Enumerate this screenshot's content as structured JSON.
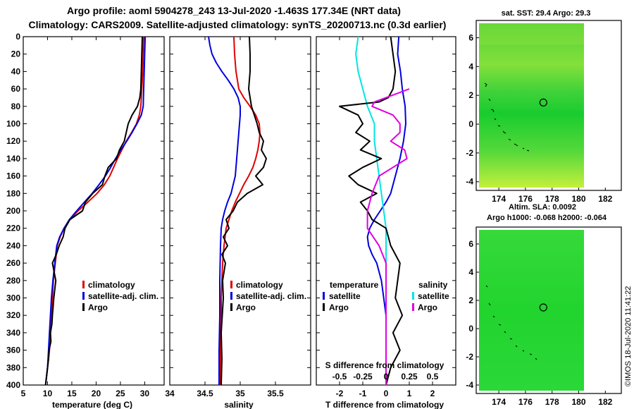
{
  "title_line1": "Argo profile: aoml 5904278_243 13-Jul-2020 -1.463S 177.34E (NRT data)",
  "title_line2": "Climatology: CARS2009. Satellite-adjusted climatology: synTS_20200713.nc (0.3d earlier)",
  "credit": "©IMOS 18-Jul-2020 11:41:22",
  "colors": {
    "climatology": "#e00000",
    "satellite": "#0000dd",
    "argo": "#000000",
    "sat_salinity": "#00e5e5",
    "salinity_diff": "#e000e0"
  },
  "chart_data": [
    {
      "type": "line",
      "name": "temperature-profile",
      "xlabel": "temperature (deg C)",
      "ylabel": "",
      "xlim": [
        5,
        34
      ],
      "ylim": [
        400,
        0
      ],
      "xticks": [
        "5",
        "10",
        "15",
        "20",
        "25",
        "30"
      ],
      "xtick_values": [
        5,
        10,
        15,
        20,
        25,
        30
      ],
      "yticks": [
        "0",
        "20",
        "40",
        "60",
        "80",
        "100",
        "120",
        "140",
        "160",
        "180",
        "200",
        "220",
        "240",
        "260",
        "280",
        "300",
        "320",
        "340",
        "360",
        "380",
        "400"
      ],
      "ytick_values": [
        0,
        20,
        40,
        60,
        80,
        100,
        120,
        140,
        160,
        180,
        200,
        220,
        240,
        260,
        280,
        300,
        320,
        340,
        360,
        380,
        400
      ],
      "legend": [
        "climatology",
        "satellite-adj. clim.",
        "Argo"
      ],
      "series": [
        {
          "name": "climatology",
          "color": "#e00000",
          "x": [
            29.8,
            29.7,
            29.6,
            29.4,
            29.2,
            28.9,
            28.3,
            27.3,
            26.2,
            25.3,
            24.4,
            23.6,
            22.8,
            21.7,
            20.2,
            18.3,
            16.3,
            14.6,
            13.4,
            12.6,
            12.0,
            11.6,
            11.2,
            11.0,
            10.8,
            10.6,
            10.4,
            10.2,
            10.0,
            9.8,
            9.6
          ],
          "y": [
            0,
            20,
            40,
            60,
            80,
            90,
            100,
            110,
            120,
            130,
            140,
            150,
            160,
            170,
            180,
            190,
            200,
            210,
            220,
            230,
            240,
            260,
            280,
            300,
            320,
            340,
            360,
            370,
            380,
            390,
            400
          ]
        },
        {
          "name": "satellite-adj. clim.",
          "color": "#0000dd",
          "x": [
            30.1,
            30.0,
            29.9,
            29.8,
            29.7,
            29.3,
            28.4,
            27.4,
            26.3,
            25.1,
            24.0,
            23.0,
            21.9,
            20.6,
            19.2,
            17.6,
            16.0,
            14.5,
            13.4,
            12.5,
            11.9,
            11.5,
            11.1,
            10.8,
            10.6,
            10.4,
            10.2,
            10.0,
            9.8,
            9.6
          ],
          "y": [
            0,
            20,
            40,
            60,
            80,
            90,
            100,
            110,
            120,
            130,
            140,
            150,
            160,
            170,
            180,
            190,
            200,
            210,
            220,
            230,
            240,
            260,
            280,
            300,
            320,
            340,
            360,
            380,
            390,
            400
          ]
        },
        {
          "name": "Argo",
          "color": "#000000",
          "x": [
            29.5,
            29.4,
            29.3,
            29.2,
            29.0,
            28.5,
            27.4,
            26.6,
            26.2,
            25.8,
            24.8,
            24.2,
            22.5,
            21.8,
            21.3,
            19.3,
            17.8,
            17.2,
            14.6,
            13.6,
            13.2,
            12.4,
            11.8,
            11.0,
            11.7,
            11.3,
            11.0,
            10.9,
            10.6,
            10.7,
            10.3,
            10.2,
            10.0,
            9.8,
            9.6
          ],
          "y": [
            0,
            20,
            40,
            60,
            70,
            80,
            90,
            100,
            110,
            120,
            130,
            140,
            150,
            160,
            170,
            180,
            190,
            200,
            210,
            220,
            230,
            240,
            250,
            260,
            280,
            300,
            320,
            330,
            340,
            350,
            360,
            370,
            380,
            390,
            400
          ]
        }
      ]
    },
    {
      "type": "line",
      "name": "salinity-profile",
      "xlabel": "salinity",
      "xlim": [
        34,
        36
      ],
      "ylim": [
        400,
        0
      ],
      "xticks": [
        "34",
        "34.5",
        "35",
        "35.5"
      ],
      "xtick_values": [
        34,
        34.5,
        35,
        35.5
      ],
      "legend": [
        "climatology",
        "satellite-adj. clim.",
        "Argo"
      ],
      "series": [
        {
          "name": "climatology",
          "color": "#e00000",
          "x": [
            34.91,
            34.92,
            34.94,
            34.98,
            35.05,
            35.14,
            35.22,
            35.27,
            35.28,
            35.27,
            35.25,
            35.22,
            35.18,
            35.12,
            35.05,
            34.99,
            34.93,
            34.88,
            34.84,
            34.8,
            34.77,
            34.75,
            34.74,
            34.73,
            34.73,
            34.72,
            34.72,
            34.72
          ],
          "y": [
            0,
            20,
            40,
            60,
            70,
            80,
            90,
            100,
            110,
            120,
            130,
            140,
            150,
            160,
            170,
            180,
            190,
            200,
            210,
            220,
            240,
            260,
            280,
            300,
            320,
            340,
            370,
            400
          ]
        },
        {
          "name": "satellite-adj. clim.",
          "color": "#0000dd",
          "x": [
            34.55,
            34.57,
            34.6,
            34.66,
            34.74,
            34.83,
            34.91,
            34.97,
            35.0,
            35.0,
            34.99,
            34.97,
            34.95,
            34.93,
            34.9,
            34.87,
            34.82,
            34.78,
            34.75,
            34.73,
            34.72,
            34.71,
            34.71,
            34.7,
            34.7
          ],
          "y": [
            0,
            10,
            20,
            30,
            40,
            50,
            60,
            70,
            80,
            90,
            100,
            120,
            140,
            160,
            170,
            180,
            190,
            200,
            210,
            220,
            240,
            280,
            320,
            360,
            400
          ]
        },
        {
          "name": "Argo",
          "color": "#000000",
          "x": [
            35.13,
            35.14,
            35.14,
            35.12,
            35.16,
            35.2,
            35.24,
            35.27,
            35.33,
            35.3,
            35.37,
            35.33,
            35.22,
            35.32,
            35.1,
            34.96,
            34.9,
            34.8,
            34.84,
            34.76,
            34.82,
            34.74,
            34.79,
            34.75,
            34.76,
            34.73,
            34.74,
            34.73
          ],
          "y": [
            0,
            20,
            40,
            60,
            80,
            90,
            100,
            110,
            120,
            130,
            140,
            150,
            160,
            170,
            180,
            190,
            200,
            210,
            220,
            230,
            240,
            250,
            260,
            280,
            300,
            340,
            370,
            400
          ]
        }
      ]
    },
    {
      "type": "line",
      "name": "difference-profile",
      "xlabel": "T difference from climatology",
      "top_axis_label": "S difference from climatology",
      "xlim": [
        -3,
        3
      ],
      "ylim": [
        400,
        0
      ],
      "xticks": [
        "-2",
        "-1",
        "0",
        "1",
        "2"
      ],
      "xtick_values": [
        -2,
        -1,
        0,
        1,
        2
      ],
      "s_ticks": [
        "-0.5",
        "-0.25",
        "0",
        "0.25",
        "0.5"
      ],
      "legend_temperature": [
        "temperature",
        "satellite",
        "Argo"
      ],
      "legend_salinity": [
        "salinity",
        "satellite",
        "Argo"
      ],
      "series": [
        {
          "name": "T satellite",
          "color": "#0000dd",
          "x": [
            0.55,
            0.5,
            0.62,
            0.7,
            0.82,
            0.85,
            0.75,
            0.6,
            0.4,
            0.2,
            0.0,
            -0.25,
            -0.5,
            -0.7,
            -0.8,
            -0.75,
            -0.6,
            -0.4,
            -0.2,
            -0.1,
            0.0,
            0.0,
            0.0,
            0.0
          ],
          "y": [
            0,
            20,
            40,
            60,
            80,
            100,
            120,
            140,
            160,
            180,
            190,
            200,
            210,
            220,
            230,
            240,
            250,
            260,
            280,
            300,
            320,
            350,
            380,
            400
          ]
        },
        {
          "name": "S satellite",
          "color": "#00e5e5",
          "x": [
            -1.2,
            -1.3,
            -1.2,
            -1.0,
            -0.8,
            -0.5,
            -0.5,
            -0.4,
            -0.3,
            -0.2,
            -0.1,
            0.0,
            0.0,
            0.0,
            0.0,
            0.0
          ],
          "y": [
            0,
            20,
            40,
            60,
            80,
            100,
            120,
            140,
            160,
            180,
            200,
            220,
            260,
            300,
            350,
            400
          ]
        },
        {
          "name": "T Argo",
          "color": "#000000",
          "x": [
            0.2,
            0.3,
            0.4,
            0.3,
            0.1,
            -0.3,
            -2.0,
            -1.2,
            -1.0,
            -1.3,
            -0.7,
            -1.1,
            -0.2,
            -1.0,
            -1.6,
            -1.2,
            -0.4,
            -1.1,
            -0.8,
            -0.6,
            0.0,
            0.2,
            0.6,
            0.4,
            0.7,
            0.3,
            0.6,
            0.2,
            0.0
          ],
          "y": [
            0,
            20,
            40,
            60,
            70,
            75,
            80,
            90,
            100,
            110,
            120,
            130,
            140,
            150,
            160,
            170,
            180,
            190,
            200,
            210,
            220,
            240,
            260,
            300,
            320,
            340,
            360,
            380,
            400
          ]
        },
        {
          "name": "S Argo",
          "color": "#e000e0",
          "x": [
            1.0,
            0.5,
            -0.5,
            -0.6,
            0.3,
            0.6,
            0.6,
            0.2,
            0.8,
            0.9,
            0.3,
            -0.3,
            -0.6,
            -0.8,
            -0.8,
            -0.3,
            0.0,
            0.0,
            0.0
          ],
          "y": [
            60,
            65,
            75,
            80,
            90,
            100,
            110,
            120,
            130,
            140,
            150,
            160,
            180,
            200,
            220,
            240,
            260,
            300,
            400
          ]
        }
      ]
    },
    {
      "type": "heatmap",
      "name": "sst-map",
      "title": "sat. SST: 29.4 Argo: 29.3",
      "xticks": [
        "174",
        "176",
        "178",
        "180",
        "182"
      ],
      "xtick_values": [
        174,
        176,
        178,
        180,
        182
      ],
      "yticks": [
        "6",
        "4",
        "2",
        "0",
        "-2",
        "-4"
      ],
      "ytick_values": [
        6,
        4,
        2,
        0,
        -2,
        -4
      ],
      "xlim": [
        172.3,
        183.2
      ],
      "ylim": [
        -4.6,
        7.2
      ],
      "marker": {
        "lon": 177.34,
        "lat": 1.5
      }
    },
    {
      "type": "heatmap",
      "name": "sla-map",
      "title_line1": "Altim. SLA: 0.0092",
      "title_line2": "Argo h1000: -0.068 h2000: -0.064",
      "xticks": [
        "174",
        "176",
        "178",
        "180",
        "182"
      ],
      "xtick_values": [
        174,
        176,
        178,
        180,
        182
      ],
      "yticks": [
        "6",
        "4",
        "2",
        "0",
        "-2",
        "-4"
      ],
      "ytick_values": [
        6,
        4,
        2,
        0,
        -2,
        -4
      ],
      "xlim": [
        172.3,
        183.2
      ],
      "ylim": [
        -4.6,
        7.2
      ],
      "marker": {
        "lon": 177.34,
        "lat": 1.5
      }
    }
  ]
}
